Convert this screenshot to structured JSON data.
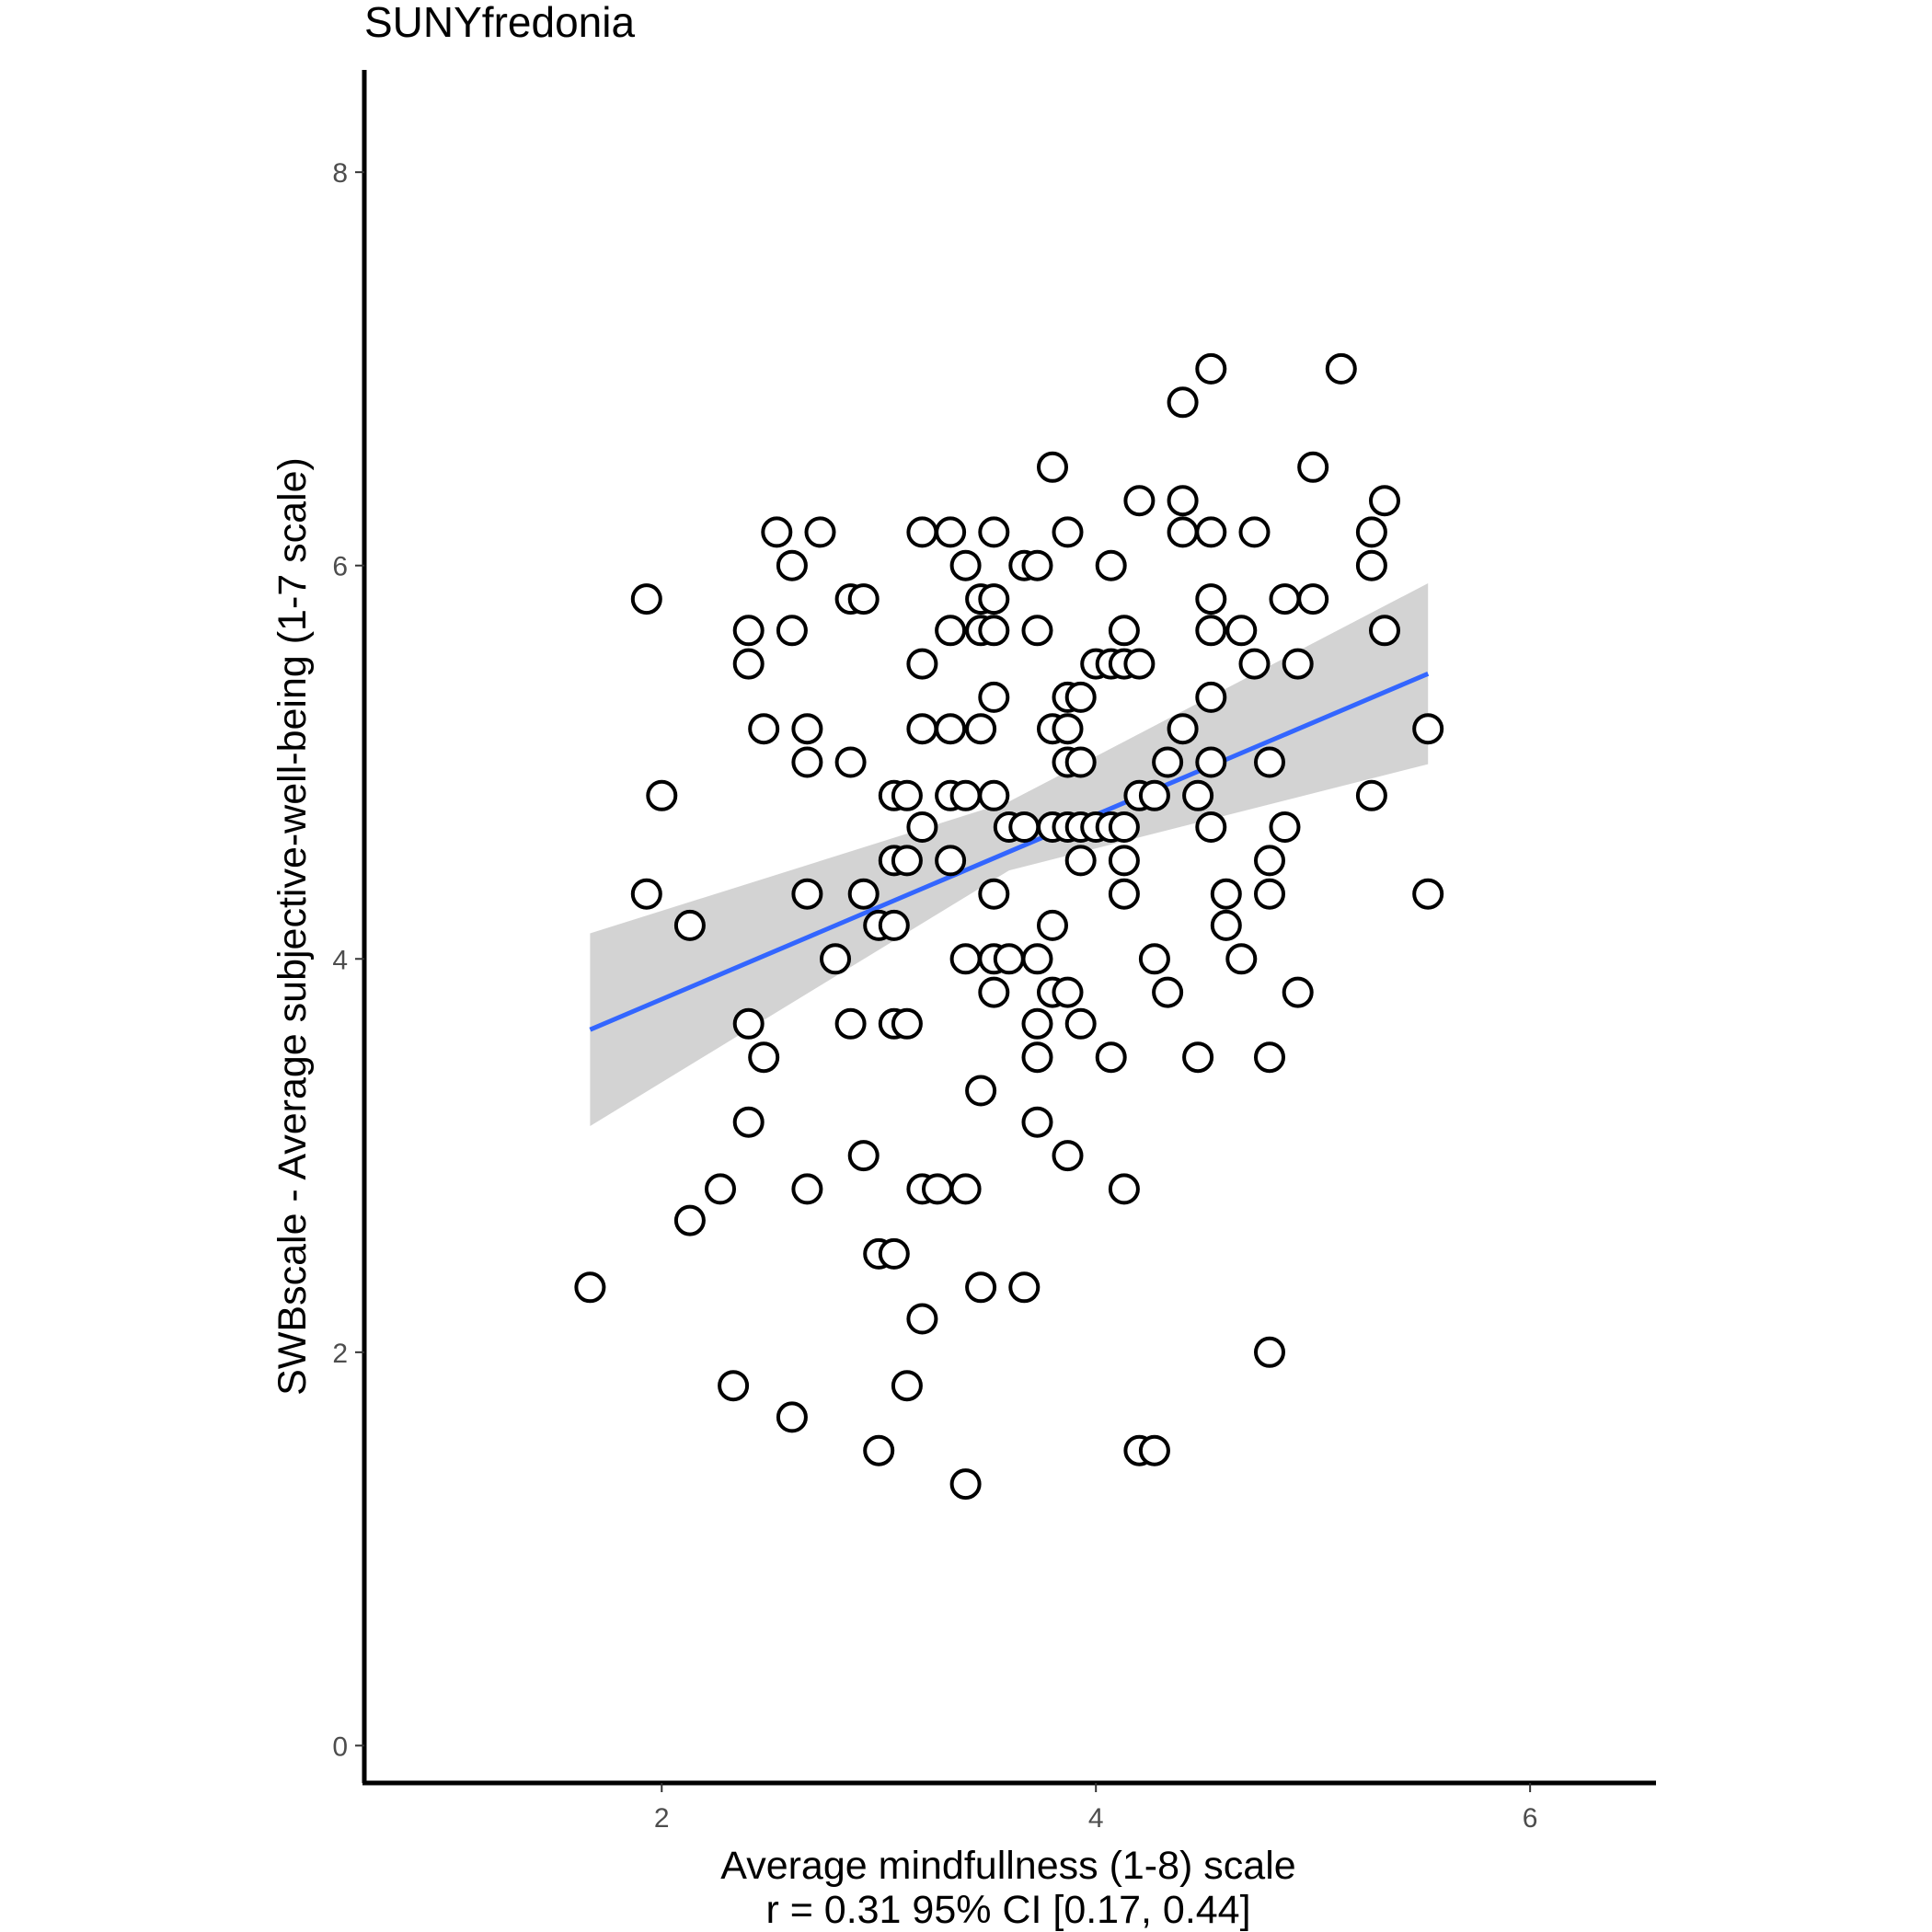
{
  "chart_data": {
    "type": "scatter",
    "title": "SUNYfredonia",
    "xlabel": "Average mindfullness (1-8) scale",
    "xlabel_subtitle": "r = 0.31 95% CI [0.17, 0.44]",
    "ylabel": "SWBscale - Average subjective-well-being (1-7 scale)",
    "xlim": [
      0.63,
      6.58
    ],
    "ylim": [
      -0.19,
      8.52
    ],
    "xticks": [
      2,
      4,
      6
    ],
    "yticks": [
      0,
      2,
      4,
      6,
      8
    ],
    "grid": false,
    "legend": "none",
    "colors": {
      "points_stroke": "#000000",
      "points_fill": "#ffffff",
      "fit_line": "#3366ff",
      "ci_band": "#d3d3d3",
      "axis": "#000000"
    },
    "fit": {
      "method": "linear",
      "line": [
        [
          1.67,
          3.64
        ],
        [
          5.53,
          5.45
        ]
      ],
      "ci_band": {
        "x": [
          1.67,
          3.6,
          5.53
        ],
        "lower": [
          3.15,
          4.45,
          4.99
        ],
        "upper": [
          4.13,
          4.8,
          5.91
        ]
      }
    },
    "points": [
      [
        1.93,
        5.83
      ],
      [
        2.0,
        4.83
      ],
      [
        1.93,
        4.33
      ],
      [
        2.13,
        4.17
      ],
      [
        2.13,
        2.67
      ],
      [
        2.27,
        2.83
      ],
      [
        2.33,
        1.83
      ],
      [
        1.67,
        2.33
      ],
      [
        2.4,
        5.67
      ],
      [
        2.4,
        5.5
      ],
      [
        2.47,
        5.17
      ],
      [
        2.53,
        6.17
      ],
      [
        2.6,
        6.0
      ],
      [
        2.6,
        5.67
      ],
      [
        2.67,
        5.17
      ],
      [
        2.67,
        5.0
      ],
      [
        2.67,
        4.33
      ],
      [
        2.73,
        6.17
      ],
      [
        2.4,
        3.67
      ],
      [
        2.47,
        3.5
      ],
      [
        2.4,
        3.17
      ],
      [
        2.6,
        1.67
      ],
      [
        2.67,
        2.83
      ],
      [
        2.8,
        4.0
      ],
      [
        2.87,
        5.83
      ],
      [
        2.93,
        5.83
      ],
      [
        2.87,
        5.0
      ],
      [
        2.93,
        4.33
      ],
      [
        2.87,
        3.67
      ],
      [
        2.93,
        3.0
      ],
      [
        3.0,
        4.17
      ],
      [
        3.07,
        4.17
      ],
      [
        3.07,
        4.5
      ],
      [
        3.07,
        4.83
      ],
      [
        3.13,
        4.83
      ],
      [
        3.13,
        4.5
      ],
      [
        3.07,
        3.67
      ],
      [
        3.13,
        3.67
      ],
      [
        3.0,
        2.5
      ],
      [
        3.07,
        2.5
      ],
      [
        3.13,
        1.83
      ],
      [
        3.0,
        1.5
      ],
      [
        3.2,
        6.17
      ],
      [
        3.2,
        5.5
      ],
      [
        3.2,
        5.17
      ],
      [
        3.2,
        4.67
      ],
      [
        3.2,
        2.83
      ],
      [
        3.27,
        2.83
      ],
      [
        3.2,
        2.17
      ],
      [
        3.33,
        6.17
      ],
      [
        3.33,
        5.67
      ],
      [
        3.33,
        5.17
      ],
      [
        3.33,
        4.83
      ],
      [
        3.33,
        4.5
      ],
      [
        3.4,
        6.0
      ],
      [
        3.4,
        4.83
      ],
      [
        3.4,
        4.0
      ],
      [
        3.4,
        2.83
      ],
      [
        3.4,
        1.33
      ],
      [
        3.47,
        5.83
      ],
      [
        3.47,
        5.67
      ],
      [
        3.47,
        5.17
      ],
      [
        3.47,
        3.33
      ],
      [
        3.47,
        2.33
      ],
      [
        3.53,
        6.17
      ],
      [
        3.53,
        5.83
      ],
      [
        3.53,
        5.67
      ],
      [
        3.53,
        5.33
      ],
      [
        3.53,
        4.83
      ],
      [
        3.53,
        4.33
      ],
      [
        3.53,
        4.0
      ],
      [
        3.53,
        3.83
      ],
      [
        3.6,
        4.67
      ],
      [
        3.6,
        4.0
      ],
      [
        3.67,
        6.0
      ],
      [
        3.67,
        4.67
      ],
      [
        3.67,
        2.33
      ],
      [
        3.73,
        6.0
      ],
      [
        3.73,
        5.67
      ],
      [
        3.73,
        4.0
      ],
      [
        3.73,
        3.67
      ],
      [
        3.73,
        3.5
      ],
      [
        3.73,
        3.17
      ],
      [
        3.8,
        6.5
      ],
      [
        3.8,
        5.17
      ],
      [
        3.8,
        4.67
      ],
      [
        3.8,
        4.17
      ],
      [
        3.8,
        3.83
      ],
      [
        3.87,
        6.17
      ],
      [
        3.87,
        5.33
      ],
      [
        3.87,
        5.17
      ],
      [
        3.87,
        5.0
      ],
      [
        3.87,
        4.67
      ],
      [
        3.87,
        3.83
      ],
      [
        3.87,
        3.0
      ],
      [
        3.93,
        5.33
      ],
      [
        3.93,
        5.0
      ],
      [
        3.93,
        4.67
      ],
      [
        3.93,
        4.5
      ],
      [
        3.93,
        3.67
      ],
      [
        4.0,
        5.5
      ],
      [
        4.0,
        4.67
      ],
      [
        4.07,
        6.0
      ],
      [
        4.07,
        5.5
      ],
      [
        4.07,
        4.67
      ],
      [
        4.07,
        3.5
      ],
      [
        4.13,
        5.67
      ],
      [
        4.13,
        5.5
      ],
      [
        4.13,
        4.67
      ],
      [
        4.13,
        4.5
      ],
      [
        4.13,
        4.33
      ],
      [
        4.13,
        2.83
      ],
      [
        4.2,
        6.33
      ],
      [
        4.2,
        5.5
      ],
      [
        4.2,
        4.83
      ],
      [
        4.2,
        1.5
      ],
      [
        4.27,
        4.83
      ],
      [
        4.27,
        4.0
      ],
      [
        4.27,
        1.5
      ],
      [
        4.33,
        5.0
      ],
      [
        4.33,
        3.83
      ],
      [
        4.4,
        6.83
      ],
      [
        4.4,
        6.33
      ],
      [
        4.4,
        6.17
      ],
      [
        4.4,
        5.17
      ],
      [
        4.47,
        4.83
      ],
      [
        4.47,
        3.5
      ],
      [
        4.53,
        7.0
      ],
      [
        4.53,
        6.17
      ],
      [
        4.53,
        5.83
      ],
      [
        4.53,
        5.67
      ],
      [
        4.53,
        5.33
      ],
      [
        4.53,
        5.0
      ],
      [
        4.53,
        4.67
      ],
      [
        4.6,
        4.33
      ],
      [
        4.6,
        4.17
      ],
      [
        4.67,
        5.67
      ],
      [
        4.67,
        4.0
      ],
      [
        4.73,
        6.17
      ],
      [
        4.73,
        5.5
      ],
      [
        4.8,
        5.0
      ],
      [
        4.8,
        4.5
      ],
      [
        4.8,
        4.33
      ],
      [
        4.8,
        3.5
      ],
      [
        4.8,
        2.0
      ],
      [
        4.87,
        5.83
      ],
      [
        4.87,
        4.67
      ],
      [
        4.93,
        5.5
      ],
      [
        4.93,
        3.83
      ],
      [
        5.0,
        6.5
      ],
      [
        5.0,
        5.83
      ],
      [
        5.13,
        7.0
      ],
      [
        5.27,
        6.17
      ],
      [
        5.27,
        6.0
      ],
      [
        5.27,
        4.83
      ],
      [
        5.33,
        6.33
      ],
      [
        5.33,
        5.67
      ],
      [
        5.53,
        5.17
      ],
      [
        5.53,
        4.33
      ]
    ]
  }
}
